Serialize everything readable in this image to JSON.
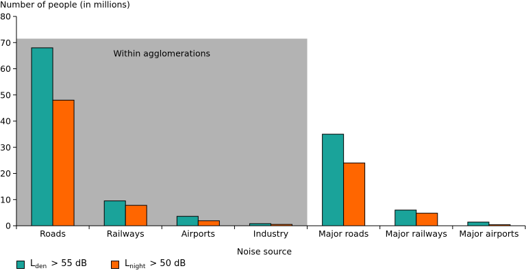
{
  "chart_data": {
    "type": "bar",
    "ylabel": "Number of people (in millions)",
    "xlabel": "Noise source",
    "ylim": [
      0,
      80
    ],
    "yticks": [
      0,
      10,
      20,
      30,
      40,
      50,
      60,
      70,
      80
    ],
    "categories": [
      "Roads",
      "Railways",
      "Airports",
      "Industry",
      "Major roads",
      "Major railways",
      "Major airports"
    ],
    "series": [
      {
        "name_main": "L",
        "name_sub": "den",
        "name_rest": "> 55 dB",
        "color": "#1aa39a",
        "values": [
          68,
          9.5,
          3.6,
          0.8,
          35,
          6,
          1.4
        ]
      },
      {
        "name_main": "L",
        "name_sub": "night",
        "name_rest": "> 50 dB",
        "color": "#ff6600",
        "values": [
          48,
          7.8,
          1.9,
          0.5,
          24,
          4.8,
          0.4
        ]
      }
    ],
    "annotation": "Within agglomerations",
    "annotation_span_categories": [
      "Roads",
      "Railways",
      "Airports",
      "Industry"
    ],
    "annotation_color": "#b3b3b3",
    "grid": false,
    "legend_position": "bottom-left"
  }
}
